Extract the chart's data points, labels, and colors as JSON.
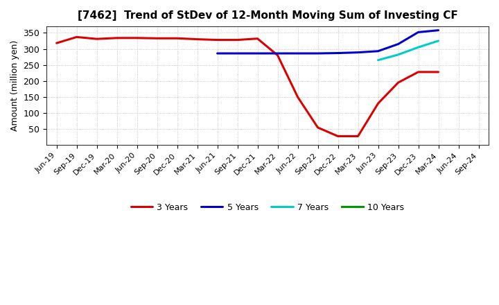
{
  "title": "[7462]  Trend of StDev of 12-Month Moving Sum of Investing CF",
  "ylabel": "Amount (million yen)",
  "background_color": "#ffffff",
  "grid_color": "#aaaaaa",
  "x_labels": [
    "Jun-19",
    "Sep-19",
    "Dec-19",
    "Mar-20",
    "Jun-20",
    "Sep-20",
    "Dec-20",
    "Mar-21",
    "Jun-21",
    "Sep-21",
    "Dec-21",
    "Mar-22",
    "Jun-22",
    "Sep-22",
    "Dec-22",
    "Mar-23",
    "Jun-23",
    "Sep-23",
    "Dec-23",
    "Mar-24",
    "Jun-24",
    "Sep-24"
  ],
  "series": {
    "3 Years": {
      "color": "#dd0000",
      "data_x": [
        0,
        1,
        2,
        3,
        4,
        5,
        6,
        7,
        8,
        9,
        10,
        11,
        12,
        13,
        14,
        15,
        16,
        17,
        18,
        19
      ],
      "data_y": [
        318,
        337,
        331,
        334,
        334,
        333,
        333,
        330,
        328,
        328,
        332,
        280,
        150,
        55,
        28,
        28,
        130,
        195,
        228,
        228
      ]
    },
    "5 Years": {
      "color": "#0000cc",
      "data_x": [
        8,
        9,
        10,
        11,
        12,
        13,
        14,
        15,
        16,
        17,
        18,
        19
      ],
      "data_y": [
        286,
        286,
        286,
        286,
        286,
        286,
        287,
        289,
        293,
        315,
        352,
        358
      ]
    },
    "7 Years": {
      "color": "#00cccc",
      "data_x": [
        16,
        17,
        18,
        19
      ],
      "data_y": [
        265,
        282,
        305,
        325
      ]
    },
    "10 Years": {
      "color": "#009900",
      "data_x": [],
      "data_y": []
    }
  },
  "ylim": [
    0,
    370
  ],
  "yticks": [
    50,
    100,
    150,
    200,
    250,
    300,
    350
  ],
  "legend_order": [
    "3 Years",
    "5 Years",
    "7 Years",
    "10 Years"
  ],
  "line_width": 2.2
}
